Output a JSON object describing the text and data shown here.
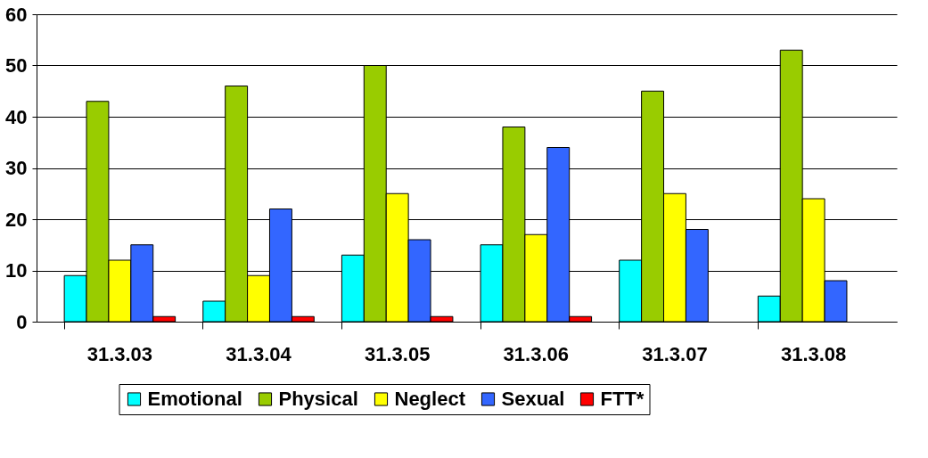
{
  "chart_data": {
    "type": "bar",
    "categories": [
      "31.3.03",
      "31.3.04",
      "31.3.05",
      "31.3.06",
      "31.3.07",
      "31.3.08"
    ],
    "series": [
      {
        "name": "Emotional",
        "color": "#00ffff",
        "values": [
          9,
          4,
          13,
          15,
          12,
          5
        ]
      },
      {
        "name": "Physical",
        "color": "#99cc00",
        "values": [
          43,
          46,
          50,
          38,
          45,
          53
        ]
      },
      {
        "name": "Neglect",
        "color": "#ffff00",
        "values": [
          12,
          9,
          25,
          17,
          25,
          24
        ]
      },
      {
        "name": "Sexual",
        "color": "#3366ff",
        "values": [
          15,
          22,
          16,
          34,
          18,
          8
        ]
      },
      {
        "name": "FTT*",
        "color": "#ff0000",
        "values": [
          1,
          1,
          1,
          1,
          null,
          null
        ]
      }
    ],
    "ylim": [
      0,
      60
    ],
    "yticks": [
      0,
      10,
      20,
      30,
      40,
      50,
      60
    ],
    "grid": "y",
    "legend": "bottom"
  }
}
